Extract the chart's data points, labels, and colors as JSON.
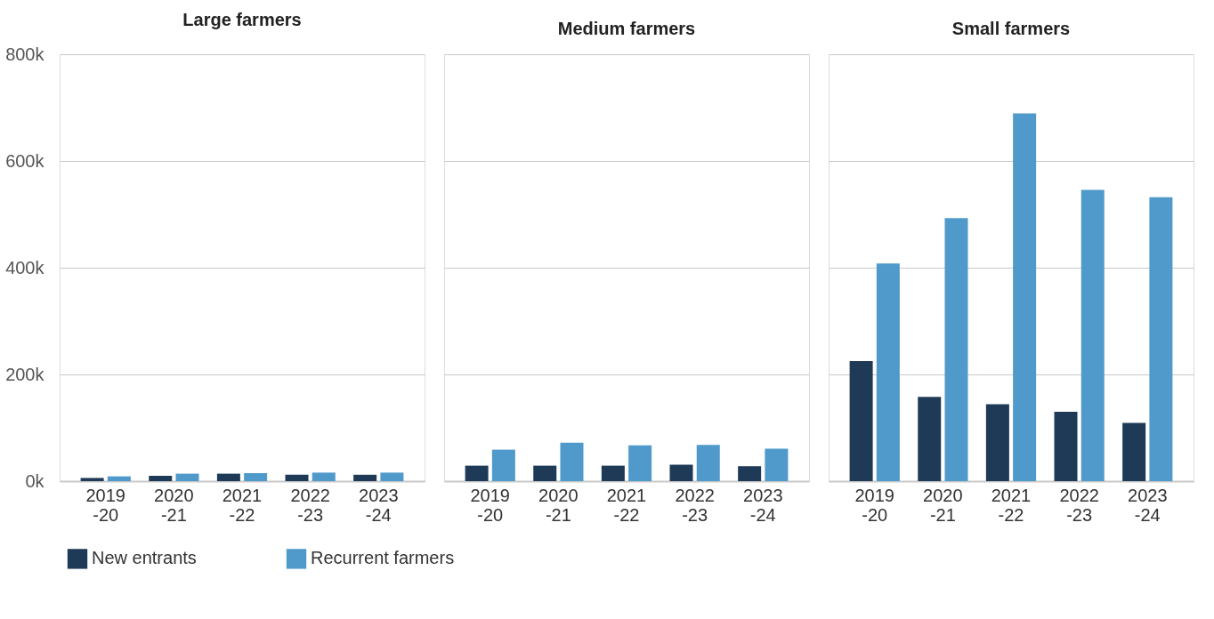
{
  "chart_data": [
    {
      "type": "bar",
      "title": "Large farmers",
      "categories": [
        "2019\n-20",
        "2020\n-21",
        "2021\n-22",
        "2022\n-23",
        "2023\n-24"
      ],
      "series": [
        {
          "name": "New entrants",
          "color": "#1f3a56",
          "values": [
            6000,
            10000,
            14000,
            12000,
            12000
          ]
        },
        {
          "name": "Recurrent farmers",
          "color": "#5099cb",
          "values": [
            9000,
            14000,
            15000,
            16000,
            16000
          ]
        }
      ],
      "ylim": [
        0,
        800000
      ],
      "yticks": [
        {
          "value": 0,
          "label": "0k"
        },
        {
          "value": 200000,
          "label": "200k"
        },
        {
          "value": 400000,
          "label": "400k"
        },
        {
          "value": 600000,
          "label": "600k"
        },
        {
          "value": 800000,
          "label": "800k"
        }
      ],
      "grid": "y",
      "legend": "bottom"
    },
    {
      "type": "bar",
      "title": "Medium farmers",
      "categories": [
        "2019\n-20",
        "2020\n-21",
        "2021\n-22",
        "2022\n-23",
        "2023\n-24"
      ],
      "series": [
        {
          "name": "New entrants",
          "color": "#1f3a56",
          "values": [
            29000,
            29000,
            29000,
            31000,
            28000
          ]
        },
        {
          "name": "Recurrent farmers",
          "color": "#5099cb",
          "values": [
            59000,
            72000,
            67000,
            68000,
            61000
          ]
        }
      ],
      "ylim": [
        0,
        800000
      ],
      "yticks": [
        0,
        200000,
        400000,
        600000,
        800000
      ],
      "grid": "y",
      "legend": "bottom",
      "tick_labels": "x"
    },
    {
      "type": "bar",
      "title": "Small farmers",
      "categories": [
        "2019\n-20",
        "2020\n-21",
        "2021\n-22",
        "2022\n-23",
        "2023\n-24"
      ],
      "series": [
        {
          "name": "New entrants",
          "color": "#1f3a56",
          "values": [
            225000,
            158000,
            144000,
            130000,
            109000
          ]
        },
        {
          "name": "Recurrent farmers",
          "color": "#5099cb",
          "values": [
            408000,
            493000,
            689000,
            546000,
            532000
          ]
        }
      ],
      "ylim": [
        0,
        800000
      ],
      "yticks": [
        0,
        200000,
        400000,
        600000,
        800000
      ],
      "grid": "y",
      "legend": "bottom",
      "tick_labels": "x"
    }
  ]
}
